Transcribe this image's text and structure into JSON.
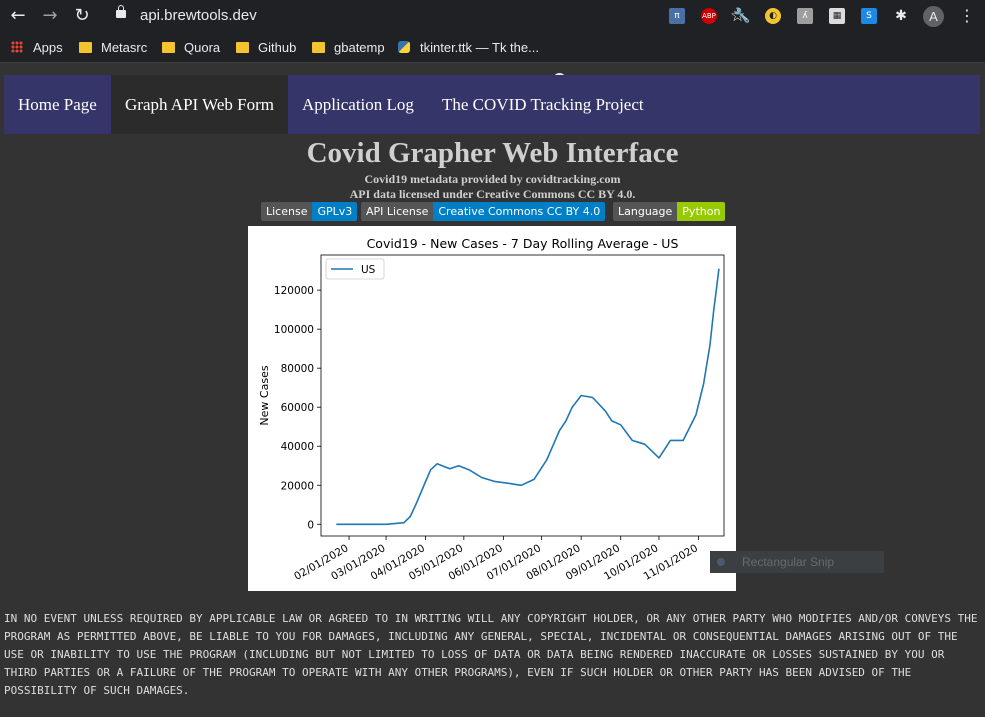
{
  "browser": {
    "url": "api.brewtools.dev",
    "profile_initial": "A",
    "extensions": [
      "ABP"
    ],
    "bookmarks": [
      {
        "label": "Apps",
        "icon": "apps-grid-icon"
      },
      {
        "label": "Metasrc",
        "icon": "folder-icon"
      },
      {
        "label": "Quora",
        "icon": "folder-icon"
      },
      {
        "label": "Github",
        "icon": "folder-icon"
      },
      {
        "label": "gbatemp",
        "icon": "folder-icon"
      },
      {
        "label": "tkinter.ttk — Tk the...",
        "icon": "python-icon"
      }
    ]
  },
  "nav": {
    "items": [
      {
        "label": "Home Page"
      },
      {
        "label": "Graph API Web Form",
        "active": true
      },
      {
        "label": "Application Log"
      },
      {
        "label": "The COVID Tracking Project"
      }
    ]
  },
  "header": {
    "title": "Covid Grapher Web Interface",
    "line1": "Covid19 metadata provided by covidtracking.com",
    "line2": "API data licensed under Creative Commons CC BY 4.0."
  },
  "badges": [
    {
      "key": "License",
      "value": "GPLv3",
      "color": "#007ec6"
    },
    {
      "key": "API License",
      "value": "Creative Commons CC BY 4.0",
      "color": "#007ec6"
    },
    {
      "key": "Language",
      "value": "Python",
      "color": "#97ca00"
    }
  ],
  "chart_data": {
    "type": "line",
    "title": "Covid19 - New Cases - 7 Day Rolling Average - US",
    "xlabel": "",
    "ylabel": "New Cases",
    "legend": "top-left",
    "grid": false,
    "ylim": [
      -6000,
      138000
    ],
    "xlim": [
      "2020-01-10",
      "2020-11-21"
    ],
    "x_ticks": [
      "02/01/2020",
      "03/01/2020",
      "04/01/2020",
      "05/01/2020",
      "06/01/2020",
      "07/01/2020",
      "08/01/2020",
      "09/01/2020",
      "10/01/2020",
      "11/01/2020"
    ],
    "x_tick_dates": [
      "2020-02-01",
      "2020-03-01",
      "2020-04-01",
      "2020-05-01",
      "2020-06-01",
      "2020-07-01",
      "2020-08-01",
      "2020-09-01",
      "2020-10-01",
      "2020-11-01"
    ],
    "y_ticks": [
      0,
      20000,
      40000,
      60000,
      80000,
      100000,
      120000
    ],
    "series": [
      {
        "name": "US",
        "color": "#1f77b4",
        "x": [
          "2020-01-22",
          "2020-03-01",
          "2020-03-15",
          "2020-03-20",
          "2020-03-25",
          "2020-04-01",
          "2020-04-05",
          "2020-04-10",
          "2020-04-14",
          "2020-04-20",
          "2020-04-27",
          "2020-05-05",
          "2020-05-15",
          "2020-05-25",
          "2020-06-05",
          "2020-06-15",
          "2020-06-25",
          "2020-07-05",
          "2020-07-15",
          "2020-07-20",
          "2020-07-25",
          "2020-08-01",
          "2020-08-10",
          "2020-08-20",
          "2020-08-25",
          "2020-09-01",
          "2020-09-10",
          "2020-09-20",
          "2020-10-01",
          "2020-10-10",
          "2020-10-20",
          "2020-10-30",
          "2020-11-05",
          "2020-11-10",
          "2020-11-13",
          "2020-11-15",
          "2020-11-17"
        ],
        "values": [
          0,
          0,
          800,
          4000,
          11000,
          22000,
          28000,
          31000,
          30000,
          28500,
          30000,
          28000,
          24000,
          22000,
          21000,
          20000,
          23000,
          33000,
          48000,
          53000,
          60000,
          66000,
          65000,
          58000,
          53000,
          51000,
          43000,
          41000,
          34000,
          43000,
          43000,
          56000,
          72000,
          92000,
          110000,
          120000,
          131000
        ]
      }
    ]
  },
  "snip_overlay": {
    "label": "Rectangular Snip"
  },
  "disclaimer": "IN NO EVENT UNLESS REQUIRED BY APPLICABLE LAW OR AGREED TO IN WRITING WILL ANY COPYRIGHT HOLDER, OR ANY OTHER PARTY WHO MODIFIES AND/OR CONVEYS THE PROGRAM AS PERMITTED ABOVE, BE LIABLE TO YOU FOR DAMAGES, INCLUDING ANY GENERAL, SPECIAL, INCIDENTAL OR CONSEQUENTIAL DAMAGES ARISING OUT OF THE USE OR INABILITY TO USE THE PROGRAM (INCLUDING BUT NOT LIMITED TO LOSS OF DATA OR DATA BEING RENDERED INACCURATE OR LOSSES SUSTAINED BY YOU OR THIRD PARTIES OR A FAILURE OF THE PROGRAM TO OPERATE WITH ANY OTHER PROGRAMS), EVEN IF SUCH HOLDER OR OTHER PARTY HAS BEEN ADVISED OF THE POSSIBILITY OF SUCH DAMAGES."
}
